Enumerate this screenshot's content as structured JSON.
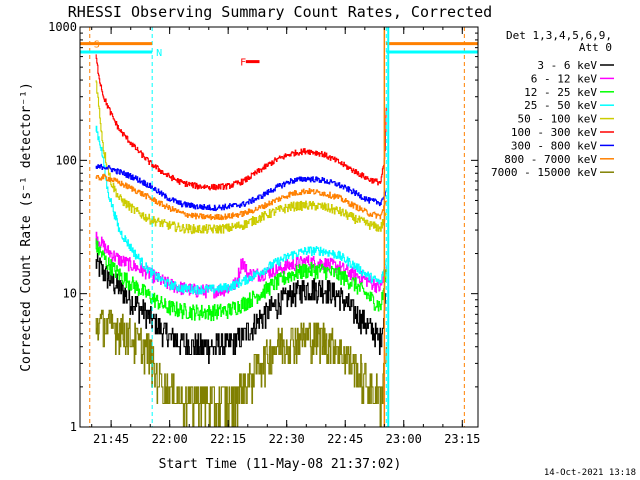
{
  "chart_data": {
    "type": "line",
    "title": "RHESSI Observing Summary Count Rates, Corrected",
    "xlabel": "Start Time (11-May-08 21:37:02)",
    "ylabel": "Corrected Count Rate (s⁻¹ detector⁻¹)",
    "yscale": "log",
    "ylim": [
      1,
      1000
    ],
    "xlim_minutes_after_start": [
      0,
      102
    ],
    "x_ticks": [
      "21:45",
      "22:00",
      "22:15",
      "22:30",
      "22:45",
      "23:00",
      "23:15"
    ],
    "y_ticks": [
      "1",
      "10",
      "100",
      "1000"
    ],
    "legend_header": [
      "Det 1,3,4,5,6,9,",
      "Att 0"
    ],
    "legend_position": "right",
    "footer": "14-Oct-2021 13:18",
    "markers": [
      {
        "label": "S",
        "color": "#ff8000",
        "x_min": 2.5,
        "y": 750
      },
      {
        "label": "N",
        "color": "#00ffff",
        "x_min": 18.5,
        "y": 650
      },
      {
        "label": "F",
        "color": "#ff0000",
        "x_min": 40,
        "y": 550
      }
    ],
    "attenuator_bars": [
      {
        "color": "#ff8000",
        "x_from": 0,
        "x_to": 18.5,
        "y": 750
      },
      {
        "color": "#00ffff",
        "x_from": 0,
        "x_to": 18.5,
        "y": 650
      },
      {
        "color": "#ff8000",
        "x_from": 78.5,
        "x_to": 102,
        "y": 750
      },
      {
        "color": "#00ffff",
        "x_from": 78.5,
        "x_to": 102,
        "y": 650
      }
    ],
    "vlines": [
      {
        "color": "#ff8000",
        "x": 2.5
      },
      {
        "color": "#00ffff",
        "x": 18.5
      },
      {
        "color": "#00ffff",
        "x": 78.5
      },
      {
        "color": "#ff8000",
        "x": 98.5
      }
    ],
    "flare_bar": {
      "color": "#ff0000",
      "x_from": 42.5,
      "x_to": 46,
      "y": 550
    },
    "series": [
      {
        "name": "3 - 6 keV",
        "color": "#000000",
        "x": [
          4,
          7,
          10,
          14,
          18,
          22,
          26,
          30,
          34,
          38,
          42,
          46,
          50,
          54,
          58,
          62,
          66,
          70,
          74,
          77,
          78.5
        ],
        "y": [
          17,
          13.5,
          11,
          8.5,
          6.5,
          5,
          4.3,
          4,
          4,
          4.2,
          4.8,
          6.5,
          8.2,
          9.8,
          11,
          11,
          9.8,
          7.5,
          5.6,
          4.5,
          10
        ]
      },
      {
        "name": "6 - 12 keV",
        "color": "#ff00ff",
        "x": [
          4,
          7,
          10,
          14,
          18,
          22,
          26,
          30,
          34,
          38,
          40,
          41.5,
          43,
          46,
          50,
          54,
          58,
          62,
          66,
          70,
          74,
          77,
          78.5
        ],
        "y": [
          27,
          21,
          18,
          16,
          14,
          12,
          11,
          10.5,
          10.5,
          11,
          12,
          18,
          14,
          14,
          15,
          16.5,
          17.5,
          17,
          16,
          14,
          12.5,
          11,
          16
        ]
      },
      {
        "name": "12 - 25 keV",
        "color": "#00ff00",
        "x": [
          4,
          7,
          10,
          14,
          18,
          22,
          26,
          30,
          34,
          38,
          42,
          46,
          50,
          54,
          58,
          62,
          66,
          70,
          74,
          77,
          78.5
        ],
        "y": [
          23,
          17,
          14,
          11.5,
          9.5,
          8,
          7.5,
          7.3,
          7.3,
          7.5,
          8.5,
          10,
          12,
          14,
          15,
          15,
          14,
          12,
          9.5,
          8,
          14
        ]
      },
      {
        "name": "25 - 50 keV",
        "color": "#00ffff",
        "x": [
          4,
          5.5,
          7,
          10,
          14,
          18,
          22,
          26,
          30,
          34,
          38,
          42,
          46,
          50,
          54,
          58,
          62,
          66,
          70,
          74,
          77,
          78.5
        ],
        "y": [
          180,
          120,
          60,
          30,
          20,
          14.5,
          12,
          11,
          10.8,
          10.8,
          11.2,
          12.5,
          14.5,
          17,
          19.5,
          21,
          21,
          19.5,
          16.5,
          13.5,
          12,
          18
        ]
      },
      {
        "name": "50 - 100 keV",
        "color": "#cccc00",
        "x": [
          4,
          5,
          6,
          8,
          10,
          14,
          18,
          22,
          26,
          30,
          34,
          38,
          42,
          46,
          50,
          54,
          58,
          62,
          66,
          70,
          74,
          77,
          78.5
        ],
        "y": [
          420,
          220,
          120,
          68,
          52,
          42,
          36,
          33,
          31,
          30.5,
          30.5,
          31,
          33,
          37,
          41.5,
          45,
          46,
          45,
          42,
          37,
          33,
          31,
          40
        ]
      },
      {
        "name": "100 - 300 keV",
        "color": "#ff0000",
        "x": [
          4,
          5,
          6,
          8,
          10,
          14,
          18,
          22,
          26,
          30,
          34,
          38,
          42,
          46,
          50,
          54,
          58,
          62,
          66,
          70,
          74,
          77,
          78,
          78.5
        ],
        "y": [
          600,
          400,
          300,
          220,
          170,
          125,
          95,
          78,
          68,
          64,
          63,
          64,
          70,
          84,
          100,
          112,
          118,
          112,
          98,
          84,
          72,
          68,
          100,
          250
        ]
      },
      {
        "name": "300 - 800 keV",
        "color": "#0000ff",
        "x": [
          4,
          6,
          8,
          10,
          14,
          18,
          22,
          26,
          30,
          34,
          38,
          42,
          46,
          50,
          54,
          58,
          62,
          66,
          70,
          74,
          77,
          78.5
        ],
        "y": [
          88,
          90,
          86,
          82,
          74,
          64,
          53,
          47,
          45,
          44,
          45,
          47,
          53,
          62,
          70,
          73,
          71,
          66,
          58,
          50,
          48,
          60
        ]
      },
      {
        "name": "800 - 7000 keV",
        "color": "#ff8000",
        "x": [
          4,
          6,
          8,
          10,
          14,
          18,
          22,
          26,
          30,
          34,
          38,
          42,
          46,
          50,
          54,
          58,
          62,
          66,
          70,
          74,
          77,
          78.5
        ],
        "y": [
          73,
          75,
          72,
          68,
          60,
          52,
          45,
          40,
          38,
          37.5,
          38,
          40,
          44,
          50,
          56,
          59,
          57,
          53,
          46,
          40,
          38,
          50
        ]
      },
      {
        "name": "7000 - 15000 keV",
        "color": "#808000",
        "x": [
          4,
          8,
          10,
          14,
          18,
          19,
          22,
          26,
          30,
          34,
          38,
          42,
          46,
          50,
          54,
          58,
          62,
          66,
          70,
          74,
          77,
          78.5
        ],
        "y": [
          6,
          5.8,
          5.5,
          4.5,
          3.7,
          2.6,
          2,
          1.7,
          1.6,
          1.5,
          1.6,
          2,
          3,
          4,
          4.6,
          4.8,
          4.6,
          4,
          3,
          2,
          1.7,
          4
        ]
      }
    ]
  }
}
